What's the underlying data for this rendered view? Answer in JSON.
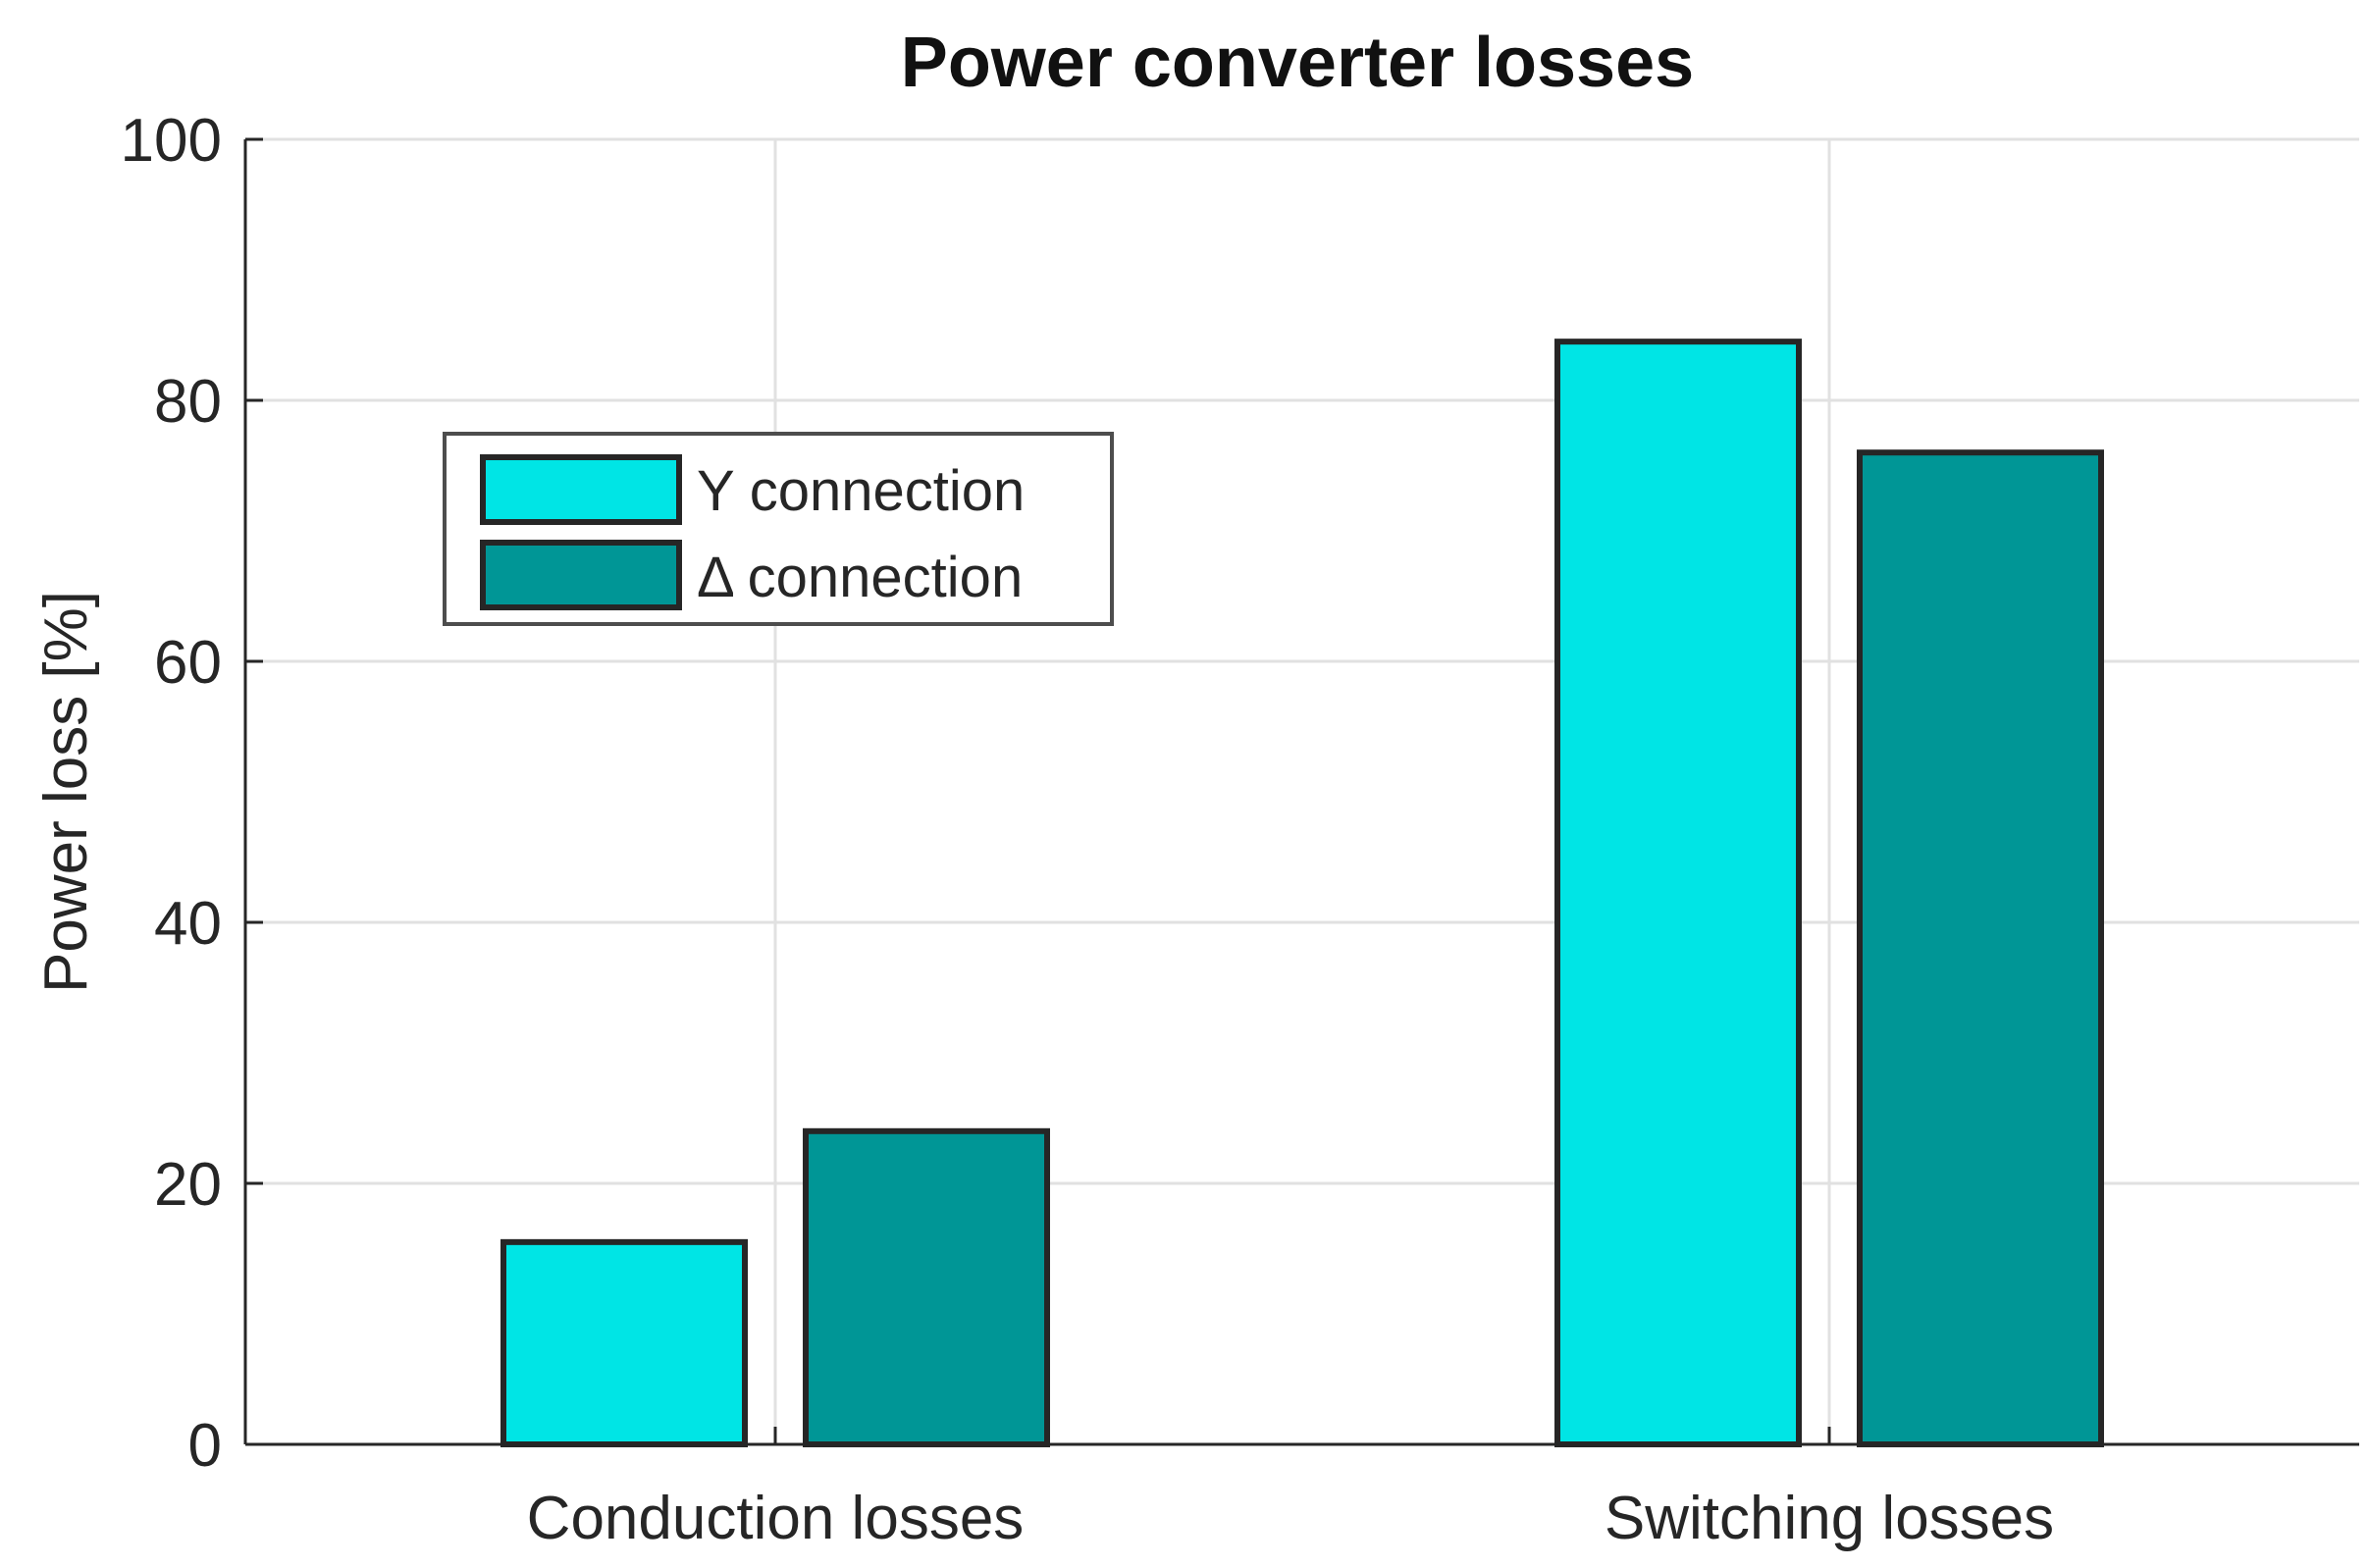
{
  "chart_data": {
    "type": "bar",
    "title": "Power converter losses",
    "xlabel": "",
    "ylabel": "Power loss [%]",
    "categories": [
      "Conduction losses",
      "Switching losses"
    ],
    "series": [
      {
        "name": "Y connection",
        "values": [
          15.5,
          84.5
        ],
        "color": "#00e5e5"
      },
      {
        "name": "Δ connection",
        "values": [
          24,
          76
        ],
        "color": "#009696"
      }
    ],
    "ylim": [
      0,
      100
    ],
    "yticks": [
      "0",
      "20",
      "40",
      "60",
      "80",
      "100"
    ],
    "grid": true,
    "legend_position": "top-left"
  }
}
